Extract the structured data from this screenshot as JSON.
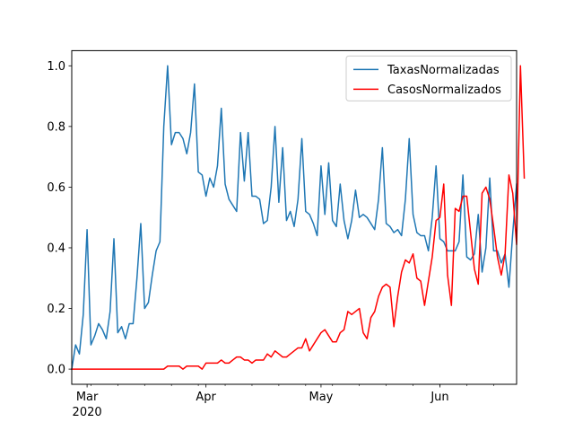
{
  "chart_data": {
    "type": "line",
    "title": "",
    "xlabel": "",
    "ylabel": "",
    "xlim": [
      "2020-02-26",
      "2020-06-21"
    ],
    "ylim": [
      -0.05,
      1.05
    ],
    "x_axis": {
      "ticks": [
        {
          "date": "2020-03-01",
          "label": "Mar",
          "sublabel": "2020"
        },
        {
          "date": "2020-04-01",
          "label": "Apr",
          "sublabel": ""
        },
        {
          "date": "2020-05-01",
          "label": "May",
          "sublabel": ""
        },
        {
          "date": "2020-06-01",
          "label": "Jun",
          "sublabel": ""
        }
      ],
      "minor_tick_days": 7
    },
    "y_axis": {
      "ticks": [
        0.0,
        0.2,
        0.4,
        0.6,
        0.8,
        1.0
      ],
      "tick_labels": [
        "0.0",
        "0.2",
        "0.4",
        "0.6",
        "0.8",
        "1.0"
      ]
    },
    "grid": false,
    "legend": {
      "position": "upper right"
    },
    "start_date": "2020-02-26",
    "series": [
      {
        "name": "TaxasNormalizadas",
        "color": "#1f77b4",
        "values": [
          0.0,
          0.08,
          0.05,
          0.18,
          0.46,
          0.08,
          0.11,
          0.15,
          0.13,
          0.1,
          0.19,
          0.43,
          0.12,
          0.14,
          0.1,
          0.15,
          0.15,
          0.3,
          0.48,
          0.2,
          0.22,
          0.31,
          0.39,
          0.42,
          0.8,
          1.0,
          0.74,
          0.78,
          0.78,
          0.76,
          0.71,
          0.78,
          0.94,
          0.65,
          0.64,
          0.57,
          0.63,
          0.6,
          0.67,
          0.86,
          0.61,
          0.56,
          0.54,
          0.52,
          0.78,
          0.62,
          0.78,
          0.57,
          0.57,
          0.56,
          0.48,
          0.49,
          0.6,
          0.8,
          0.55,
          0.73,
          0.49,
          0.52,
          0.47,
          0.56,
          0.76,
          0.52,
          0.51,
          0.48,
          0.44,
          0.67,
          0.51,
          0.68,
          0.49,
          0.47,
          0.61,
          0.49,
          0.43,
          0.49,
          0.59,
          0.5,
          0.51,
          0.5,
          0.48,
          0.46,
          0.56,
          0.73,
          0.48,
          0.47,
          0.45,
          0.46,
          0.44,
          0.56,
          0.76,
          0.51,
          0.45,
          0.44,
          0.44,
          0.39,
          0.5,
          0.67,
          0.43,
          0.42,
          0.39,
          0.39,
          0.39,
          0.42,
          0.64,
          0.37,
          0.36,
          0.38,
          0.51,
          0.32,
          0.4,
          0.63,
          0.39,
          0.39,
          0.35,
          0.38,
          0.27,
          0.45,
          0.61
        ]
      },
      {
        "name": "CasosNormalizados",
        "color": "#ff0000",
        "values": [
          0.0,
          0.0,
          0.0,
          0.0,
          0.0,
          0.0,
          0.0,
          0.0,
          0.0,
          0.0,
          0.0,
          0.0,
          0.0,
          0.0,
          0.0,
          0.0,
          0.0,
          0.0,
          0.0,
          0.0,
          0.0,
          0.0,
          0.0,
          0.0,
          0.0,
          0.01,
          0.01,
          0.01,
          0.01,
          0.0,
          0.01,
          0.01,
          0.01,
          0.01,
          0.0,
          0.02,
          0.02,
          0.02,
          0.02,
          0.03,
          0.02,
          0.02,
          0.03,
          0.04,
          0.04,
          0.03,
          0.03,
          0.02,
          0.03,
          0.03,
          0.03,
          0.05,
          0.04,
          0.06,
          0.05,
          0.04,
          0.04,
          0.05,
          0.06,
          0.07,
          0.07,
          0.1,
          0.06,
          0.08,
          0.1,
          0.12,
          0.13,
          0.11,
          0.09,
          0.09,
          0.12,
          0.13,
          0.19,
          0.18,
          0.19,
          0.2,
          0.12,
          0.1,
          0.17,
          0.19,
          0.24,
          0.27,
          0.28,
          0.27,
          0.14,
          0.24,
          0.32,
          0.36,
          0.35,
          0.38,
          0.3,
          0.29,
          0.21,
          0.29,
          0.37,
          0.49,
          0.5,
          0.61,
          0.31,
          0.21,
          0.53,
          0.52,
          0.57,
          0.57,
          0.45,
          0.33,
          0.28,
          0.58,
          0.6,
          0.56,
          0.47,
          0.37,
          0.31,
          0.38,
          0.64,
          0.58,
          0.41,
          1.0,
          0.63
        ]
      }
    ]
  }
}
